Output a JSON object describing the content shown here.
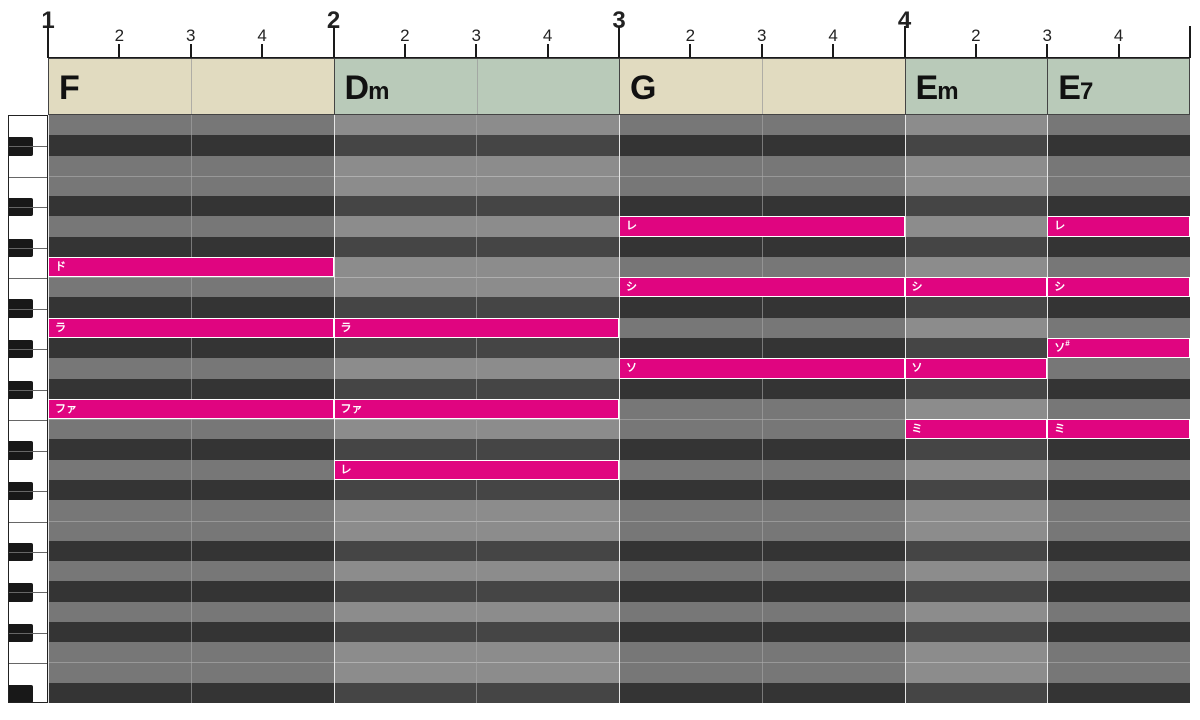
{
  "ruler": {
    "bars": [
      {
        "number": "1",
        "beats": [
          "2",
          "3",
          "4"
        ]
      },
      {
        "number": "2",
        "beats": [
          "2",
          "3",
          "4"
        ]
      },
      {
        "number": "3",
        "beats": [
          "2",
          "3",
          "4"
        ]
      },
      {
        "number": "4",
        "beats": [
          "2",
          "3",
          "4"
        ]
      }
    ]
  },
  "chords": [
    {
      "root": "F",
      "quality": "",
      "start": 0,
      "end": 4,
      "bg": "#e1dbc0"
    },
    {
      "root": "D",
      "quality": "m",
      "start": 4,
      "end": 8,
      "bg": "#b9cab9"
    },
    {
      "root": "G",
      "quality": "",
      "start": 8,
      "end": 12,
      "bg": "#e1dbc0"
    },
    {
      "root": "E",
      "quality": "m",
      "start": 12,
      "end": 14,
      "bg": "#b9cab9"
    },
    {
      "root": "E",
      "quality": "7",
      "start": 14,
      "end": 16,
      "bg": "#b9cab9"
    }
  ],
  "piano_roll": {
    "top_pitch": 79,
    "bottom_pitch": 51,
    "beats_total": 16,
    "beats_per_bar": 4,
    "colors": {
      "white_lane": "#858585",
      "black_lane": "#3a3a3a",
      "note": "#e00580"
    }
  },
  "notes": [
    {
      "label": "ド",
      "accidental": "",
      "pitch": 72,
      "start": 0,
      "end": 4
    },
    {
      "label": "ラ",
      "accidental": "",
      "pitch": 69,
      "start": 0,
      "end": 4
    },
    {
      "label": "ファ",
      "accidental": "",
      "pitch": 65,
      "start": 0,
      "end": 4
    },
    {
      "label": "ラ",
      "accidental": "",
      "pitch": 69,
      "start": 4,
      "end": 8
    },
    {
      "label": "ファ",
      "accidental": "",
      "pitch": 65,
      "start": 4,
      "end": 8
    },
    {
      "label": "レ",
      "accidental": "",
      "pitch": 62,
      "start": 4,
      "end": 8
    },
    {
      "label": "レ",
      "accidental": "",
      "pitch": 74,
      "start": 8,
      "end": 12
    },
    {
      "label": "シ",
      "accidental": "",
      "pitch": 71,
      "start": 8,
      "end": 12
    },
    {
      "label": "ソ",
      "accidental": "",
      "pitch": 67,
      "start": 8,
      "end": 12
    },
    {
      "label": "シ",
      "accidental": "",
      "pitch": 71,
      "start": 12,
      "end": 14
    },
    {
      "label": "ソ",
      "accidental": "",
      "pitch": 67,
      "start": 12,
      "end": 14
    },
    {
      "label": "ミ",
      "accidental": "",
      "pitch": 64,
      "start": 12,
      "end": 14
    },
    {
      "label": "レ",
      "accidental": "",
      "pitch": 74,
      "start": 14,
      "end": 16
    },
    {
      "label": "シ",
      "accidental": "",
      "pitch": 71,
      "start": 14,
      "end": 16
    },
    {
      "label": "ソ",
      "accidental": "#",
      "pitch": 68,
      "start": 14,
      "end": 16
    },
    {
      "label": "ミ",
      "accidental": "",
      "pitch": 64,
      "start": 14,
      "end": 16
    }
  ]
}
